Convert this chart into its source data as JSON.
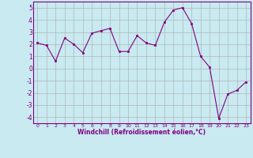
{
  "x": [
    0,
    1,
    2,
    3,
    4,
    5,
    6,
    7,
    8,
    9,
    10,
    11,
    12,
    13,
    14,
    15,
    16,
    17,
    18,
    19,
    20,
    21,
    22,
    23
  ],
  "y": [
    2.1,
    1.9,
    0.6,
    2.5,
    2.0,
    1.3,
    2.9,
    3.1,
    3.3,
    1.4,
    1.4,
    2.7,
    2.1,
    1.9,
    3.8,
    4.8,
    5.0,
    3.7,
    1.0,
    0.1,
    -4.1,
    -2.1,
    -1.8,
    -1.1
  ],
  "line_color": "#800080",
  "marker": "s",
  "markersize": 2.0,
  "linewidth": 0.8,
  "xlabel": "Windchill (Refroidissement éolien,°C)",
  "xlim": [
    -0.5,
    23.5
  ],
  "ylim": [
    -4.5,
    5.5
  ],
  "yticks": [
    -4,
    -3,
    -2,
    -1,
    0,
    1,
    2,
    3,
    4,
    5
  ],
  "xticks": [
    0,
    1,
    2,
    3,
    4,
    5,
    6,
    7,
    8,
    9,
    10,
    11,
    12,
    13,
    14,
    15,
    16,
    17,
    18,
    19,
    20,
    21,
    22,
    23
  ],
  "bg_color": "#c8eaf0",
  "grid_color": "#aaaaaa",
  "tick_color": "#800080",
  "label_color": "#800080",
  "spine_color": "#800080"
}
